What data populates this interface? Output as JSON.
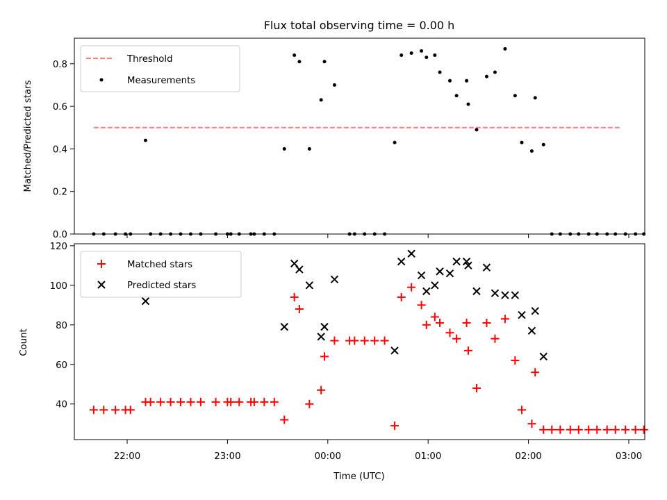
{
  "title": "Flux total observing time = 0.00 h",
  "chart_data": [
    {
      "type": "scatter",
      "ylabel": "Matched/Predicted stars",
      "ylim": [
        0,
        0.92
      ],
      "yticks": [
        "0.0",
        "0.2",
        "0.4",
        "0.6",
        "0.8"
      ],
      "ytick_values": [
        0,
        0.2,
        0.4,
        0.6,
        0.8
      ],
      "legend_position": "upper left",
      "threshold": {
        "name": "Threshold",
        "value": 0.5,
        "x_start": "21:40",
        "x_end": "02:55",
        "color": "#ff7f7f"
      },
      "series": [
        {
          "name": "Measurements",
          "color": "#000000",
          "marker": "dot",
          "points": [
            [
              "21:40",
              0
            ],
            [
              "21:46",
              0
            ],
            [
              "21:53",
              0
            ],
            [
              "21:59",
              0
            ],
            [
              "22:02",
              0
            ],
            [
              "22:11",
              0.44
            ],
            [
              "22:14",
              0
            ],
            [
              "22:20",
              0
            ],
            [
              "22:26",
              0
            ],
            [
              "22:32",
              0
            ],
            [
              "22:38",
              0
            ],
            [
              "22:44",
              0
            ],
            [
              "22:53",
              0
            ],
            [
              "23:00",
              0
            ],
            [
              "23:02",
              0
            ],
            [
              "23:07",
              0
            ],
            [
              "23:14",
              0
            ],
            [
              "23:16",
              0
            ],
            [
              "23:22",
              0
            ],
            [
              "23:28",
              0
            ],
            [
              "23:34",
              0.4
            ],
            [
              "23:40",
              0.84
            ],
            [
              "23:43",
              0.81
            ],
            [
              "23:49",
              0.4
            ],
            [
              "23:56",
              0.63
            ],
            [
              "23:58",
              0.81
            ],
            [
              "00:04",
              0.7
            ],
            [
              "00:13",
              0
            ],
            [
              "00:16",
              0
            ],
            [
              "00:22",
              0
            ],
            [
              "00:28",
              0
            ],
            [
              "00:34",
              0
            ],
            [
              "00:40",
              0.43
            ],
            [
              "00:44",
              0.84
            ],
            [
              "00:50",
              0.85
            ],
            [
              "00:56",
              0.86
            ],
            [
              "00:59",
              0.83
            ],
            [
              "01:04",
              0.84
            ],
            [
              "01:07",
              0.76
            ],
            [
              "01:13",
              0.72
            ],
            [
              "01:17",
              0.65
            ],
            [
              "01:23",
              0.72
            ],
            [
              "01:24",
              0.61
            ],
            [
              "01:29",
              0.49
            ],
            [
              "01:35",
              0.74
            ],
            [
              "01:40",
              0.76
            ],
            [
              "01:46",
              0.87
            ],
            [
              "01:52",
              0.65
            ],
            [
              "01:56",
              0.43
            ],
            [
              "02:02",
              0.39
            ],
            [
              "02:04",
              0.64
            ],
            [
              "02:09",
              0.42
            ],
            [
              "02:14",
              0
            ],
            [
              "02:19",
              0
            ],
            [
              "02:25",
              0
            ],
            [
              "02:30",
              0
            ],
            [
              "02:36",
              0
            ],
            [
              "02:41",
              0
            ],
            [
              "02:47",
              0
            ],
            [
              "02:52",
              0
            ],
            [
              "02:58",
              0
            ],
            [
              "03:04",
              0
            ],
            [
              "03:09",
              0
            ]
          ]
        }
      ]
    },
    {
      "type": "scatter",
      "xlabel": "Time (UTC)",
      "ylabel": "Count",
      "ylim": [
        22,
        121
      ],
      "yticks": [
        "40",
        "60",
        "80",
        "100",
        "120"
      ],
      "ytick_values": [
        40,
        60,
        80,
        100,
        120
      ],
      "xticks": [
        "22:00",
        "23:00",
        "00:00",
        "01:00",
        "02:00",
        "03:00"
      ],
      "legend_position": "upper left",
      "series": [
        {
          "name": "Matched stars",
          "color": "#ff0000",
          "marker": "plus",
          "points": [
            [
              "21:40",
              37
            ],
            [
              "21:46",
              37
            ],
            [
              "21:53",
              37
            ],
            [
              "21:59",
              37
            ],
            [
              "22:02",
              37
            ],
            [
              "22:11",
              41
            ],
            [
              "22:14",
              41
            ],
            [
              "22:20",
              41
            ],
            [
              "22:26",
              41
            ],
            [
              "22:32",
              41
            ],
            [
              "22:38",
              41
            ],
            [
              "22:44",
              41
            ],
            [
              "22:53",
              41
            ],
            [
              "23:00",
              41
            ],
            [
              "23:02",
              41
            ],
            [
              "23:07",
              41
            ],
            [
              "23:14",
              41
            ],
            [
              "23:16",
              41
            ],
            [
              "23:22",
              41
            ],
            [
              "23:28",
              41
            ],
            [
              "23:34",
              32
            ],
            [
              "23:40",
              94
            ],
            [
              "23:43",
              88
            ],
            [
              "23:49",
              40
            ],
            [
              "23:56",
              47
            ],
            [
              "23:58",
              64
            ],
            [
              "00:04",
              72
            ],
            [
              "00:13",
              72
            ],
            [
              "00:16",
              72
            ],
            [
              "00:22",
              72
            ],
            [
              "00:28",
              72
            ],
            [
              "00:34",
              72
            ],
            [
              "00:40",
              29
            ],
            [
              "00:44",
              94
            ],
            [
              "00:50",
              99
            ],
            [
              "00:56",
              90
            ],
            [
              "00:59",
              80
            ],
            [
              "01:04",
              84
            ],
            [
              "01:07",
              81
            ],
            [
              "01:13",
              76
            ],
            [
              "01:17",
              73
            ],
            [
              "01:23",
              81
            ],
            [
              "01:24",
              67
            ],
            [
              "01:29",
              48
            ],
            [
              "01:35",
              81
            ],
            [
              "01:40",
              73
            ],
            [
              "01:46",
              83
            ],
            [
              "01:52",
              62
            ],
            [
              "01:56",
              37
            ],
            [
              "02:02",
              30
            ],
            [
              "02:04",
              56
            ],
            [
              "02:09",
              27
            ],
            [
              "02:14",
              27
            ],
            [
              "02:19",
              27
            ],
            [
              "02:25",
              27
            ],
            [
              "02:30",
              27
            ],
            [
              "02:36",
              27
            ],
            [
              "02:41",
              27
            ],
            [
              "02:47",
              27
            ],
            [
              "02:52",
              27
            ],
            [
              "02:58",
              27
            ],
            [
              "03:04",
              27
            ],
            [
              "03:09",
              27
            ]
          ]
        },
        {
          "name": "Predicted stars",
          "color": "#000000",
          "marker": "x",
          "points": [
            [
              "22:11",
              92
            ],
            [
              "23:34",
              79
            ],
            [
              "23:40",
              111
            ],
            [
              "23:43",
              108
            ],
            [
              "23:49",
              100
            ],
            [
              "23:56",
              74
            ],
            [
              "23:58",
              79
            ],
            [
              "00:04",
              103
            ],
            [
              "00:40",
              67
            ],
            [
              "00:44",
              112
            ],
            [
              "00:50",
              116
            ],
            [
              "00:56",
              105
            ],
            [
              "00:59",
              97
            ],
            [
              "01:04",
              100
            ],
            [
              "01:07",
              107
            ],
            [
              "01:13",
              106
            ],
            [
              "01:17",
              112
            ],
            [
              "01:23",
              112
            ],
            [
              "01:24",
              110
            ],
            [
              "01:29",
              97
            ],
            [
              "01:35",
              109
            ],
            [
              "01:40",
              96
            ],
            [
              "01:46",
              95
            ],
            [
              "01:52",
              95
            ],
            [
              "01:56",
              85
            ],
            [
              "02:02",
              77
            ],
            [
              "02:04",
              87
            ],
            [
              "02:09",
              64
            ]
          ]
        }
      ]
    }
  ]
}
